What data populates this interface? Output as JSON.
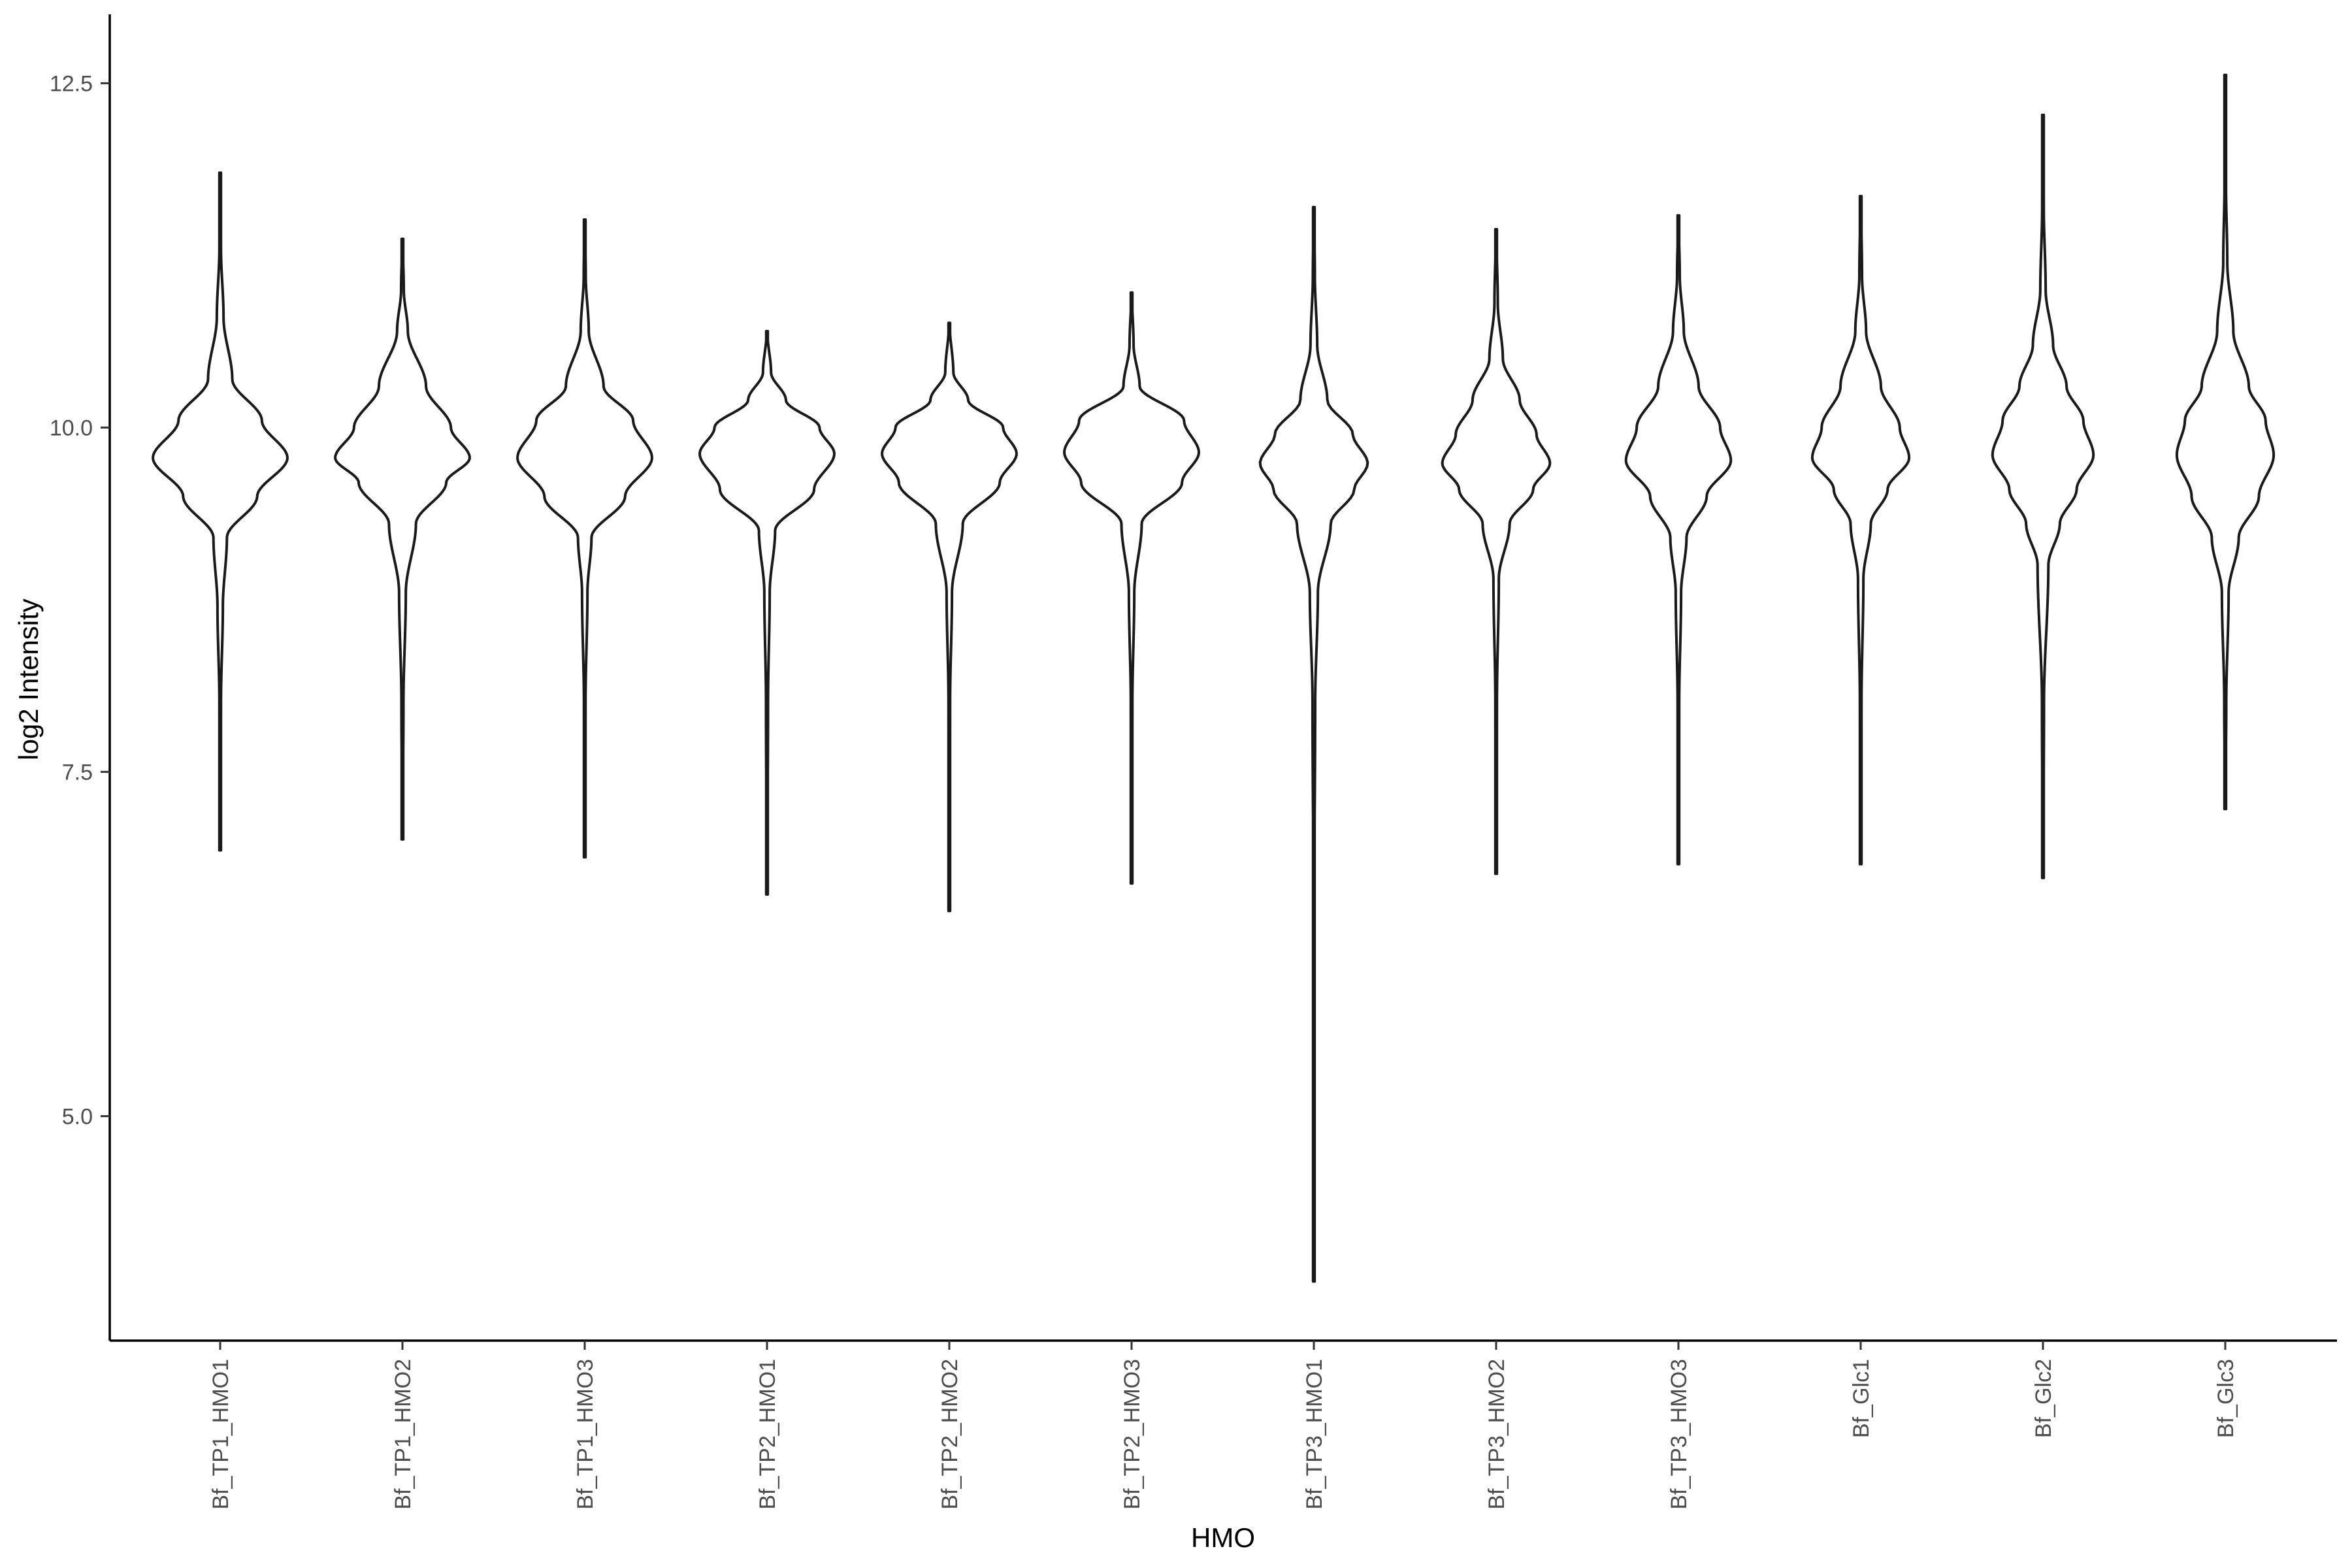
{
  "chart_data": {
    "type": "violin",
    "xlabel": "HMO",
    "ylabel": "log2 Intensity",
    "ylim": [
      3.37,
      13.0
    ],
    "yticks": [
      "5.0",
      "7.5",
      "10.0",
      "12.5"
    ],
    "yticks_values": [
      5.0,
      7.5,
      10.0,
      12.5
    ],
    "grid": false,
    "legend": "none",
    "line_color": "#1a1a1a",
    "series": [
      {
        "category": "Bf_TP1_HMO1",
        "min": 6.93,
        "max": 11.85,
        "mode": 9.78,
        "profile": [
          [
            6.93,
            0.004
          ],
          [
            8.0,
            0.012
          ],
          [
            8.7,
            0.04
          ],
          [
            9.2,
            0.1
          ],
          [
            9.5,
            0.55
          ],
          [
            9.78,
            1.0
          ],
          [
            10.05,
            0.62
          ],
          [
            10.35,
            0.18
          ],
          [
            10.8,
            0.05
          ],
          [
            11.3,
            0.012
          ],
          [
            11.85,
            0.004
          ]
        ]
      },
      {
        "category": "Bf_TP1_HMO2",
        "min": 7.01,
        "max": 11.37,
        "mode": 9.78,
        "profile": [
          [
            7.01,
            0.004
          ],
          [
            8.0,
            0.015
          ],
          [
            8.8,
            0.05
          ],
          [
            9.3,
            0.2
          ],
          [
            9.6,
            0.65
          ],
          [
            9.78,
            1.0
          ],
          [
            10.0,
            0.72
          ],
          [
            10.3,
            0.35
          ],
          [
            10.7,
            0.08
          ],
          [
            11.0,
            0.02
          ],
          [
            11.37,
            0.004
          ]
        ]
      },
      {
        "category": "Bf_TP1_HMO3",
        "min": 6.88,
        "max": 11.51,
        "mode": 9.78,
        "profile": [
          [
            6.88,
            0.004
          ],
          [
            8.0,
            0.012
          ],
          [
            8.8,
            0.04
          ],
          [
            9.2,
            0.1
          ],
          [
            9.5,
            0.6
          ],
          [
            9.78,
            1.0
          ],
          [
            10.05,
            0.72
          ],
          [
            10.3,
            0.28
          ],
          [
            10.7,
            0.06
          ],
          [
            11.1,
            0.015
          ],
          [
            11.51,
            0.004
          ]
        ]
      },
      {
        "category": "Bf_TP2_HMO1",
        "min": 6.61,
        "max": 10.7,
        "mode": 9.81,
        "profile": [
          [
            6.61,
            0.004
          ],
          [
            8.0,
            0.015
          ],
          [
            8.8,
            0.04
          ],
          [
            9.25,
            0.12
          ],
          [
            9.55,
            0.7
          ],
          [
            9.81,
            1.0
          ],
          [
            10.0,
            0.78
          ],
          [
            10.2,
            0.28
          ],
          [
            10.4,
            0.06
          ],
          [
            10.7,
            0.004
          ]
        ]
      },
      {
        "category": "Bf_TP2_HMO2",
        "min": 6.49,
        "max": 10.76,
        "mode": 9.81,
        "profile": [
          [
            6.49,
            0.004
          ],
          [
            8.0,
            0.012
          ],
          [
            8.8,
            0.04
          ],
          [
            9.3,
            0.2
          ],
          [
            9.6,
            0.75
          ],
          [
            9.81,
            1.0
          ],
          [
            10.0,
            0.8
          ],
          [
            10.2,
            0.28
          ],
          [
            10.4,
            0.06
          ],
          [
            10.76,
            0.004
          ]
        ]
      },
      {
        "category": "Bf_TP2_HMO3",
        "min": 6.69,
        "max": 10.98,
        "mode": 9.82,
        "profile": [
          [
            6.69,
            0.004
          ],
          [
            8.0,
            0.012
          ],
          [
            8.8,
            0.04
          ],
          [
            9.3,
            0.15
          ],
          [
            9.6,
            0.75
          ],
          [
            9.82,
            1.0
          ],
          [
            10.05,
            0.78
          ],
          [
            10.3,
            0.12
          ],
          [
            10.6,
            0.03
          ],
          [
            10.98,
            0.004
          ]
        ]
      },
      {
        "category": "Bf_TP3_HMO1",
        "min": 3.8,
        "max": 11.6,
        "mode": 9.74,
        "profile": [
          [
            3.8,
            0.004
          ],
          [
            6.5,
            0.006
          ],
          [
            8.0,
            0.02
          ],
          [
            8.8,
            0.06
          ],
          [
            9.3,
            0.25
          ],
          [
            9.55,
            0.6
          ],
          [
            9.74,
            0.8
          ],
          [
            9.95,
            0.58
          ],
          [
            10.2,
            0.2
          ],
          [
            10.6,
            0.05
          ],
          [
            11.1,
            0.015
          ],
          [
            11.6,
            0.004
          ]
        ]
      },
      {
        "category": "Bf_TP3_HMO2",
        "min": 6.76,
        "max": 11.44,
        "mode": 9.74,
        "profile": [
          [
            6.76,
            0.004
          ],
          [
            8.0,
            0.012
          ],
          [
            8.9,
            0.04
          ],
          [
            9.3,
            0.2
          ],
          [
            9.55,
            0.55
          ],
          [
            9.74,
            0.8
          ],
          [
            9.95,
            0.6
          ],
          [
            10.2,
            0.35
          ],
          [
            10.5,
            0.1
          ],
          [
            10.9,
            0.025
          ],
          [
            11.44,
            0.004
          ]
        ]
      },
      {
        "category": "Bf_TP3_HMO3",
        "min": 6.83,
        "max": 11.54,
        "mode": 9.76,
        "profile": [
          [
            6.83,
            0.004
          ],
          [
            8.0,
            0.012
          ],
          [
            8.8,
            0.04
          ],
          [
            9.2,
            0.12
          ],
          [
            9.5,
            0.42
          ],
          [
            9.76,
            0.78
          ],
          [
            10.0,
            0.62
          ],
          [
            10.3,
            0.3
          ],
          [
            10.7,
            0.08
          ],
          [
            11.1,
            0.02
          ],
          [
            11.54,
            0.004
          ]
        ]
      },
      {
        "category": "Bf_Glc1",
        "min": 6.83,
        "max": 11.68,
        "mode": 9.78,
        "profile": [
          [
            6.83,
            0.004
          ],
          [
            8.0,
            0.012
          ],
          [
            8.9,
            0.04
          ],
          [
            9.3,
            0.15
          ],
          [
            9.55,
            0.4
          ],
          [
            9.78,
            0.72
          ],
          [
            10.0,
            0.58
          ],
          [
            10.3,
            0.3
          ],
          [
            10.7,
            0.08
          ],
          [
            11.1,
            0.02
          ],
          [
            11.68,
            0.004
          ]
        ]
      },
      {
        "category": "Bf_Glc2",
        "min": 6.73,
        "max": 12.27,
        "mode": 9.8,
        "profile": [
          [
            6.73,
            0.004
          ],
          [
            8.0,
            0.015
          ],
          [
            9.0,
            0.08
          ],
          [
            9.3,
            0.25
          ],
          [
            9.55,
            0.5
          ],
          [
            9.8,
            0.75
          ],
          [
            10.05,
            0.6
          ],
          [
            10.3,
            0.35
          ],
          [
            10.6,
            0.15
          ],
          [
            11.0,
            0.04
          ],
          [
            11.6,
            0.012
          ],
          [
            12.27,
            0.004
          ]
        ]
      },
      {
        "category": "Bf_Glc3",
        "min": 7.23,
        "max": 12.56,
        "mode": 9.8,
        "profile": [
          [
            7.23,
            0.004
          ],
          [
            8.0,
            0.015
          ],
          [
            8.8,
            0.05
          ],
          [
            9.2,
            0.2
          ],
          [
            9.5,
            0.5
          ],
          [
            9.8,
            0.72
          ],
          [
            10.05,
            0.6
          ],
          [
            10.3,
            0.35
          ],
          [
            10.7,
            0.12
          ],
          [
            11.2,
            0.03
          ],
          [
            11.8,
            0.01
          ],
          [
            12.56,
            0.004
          ]
        ]
      }
    ]
  }
}
